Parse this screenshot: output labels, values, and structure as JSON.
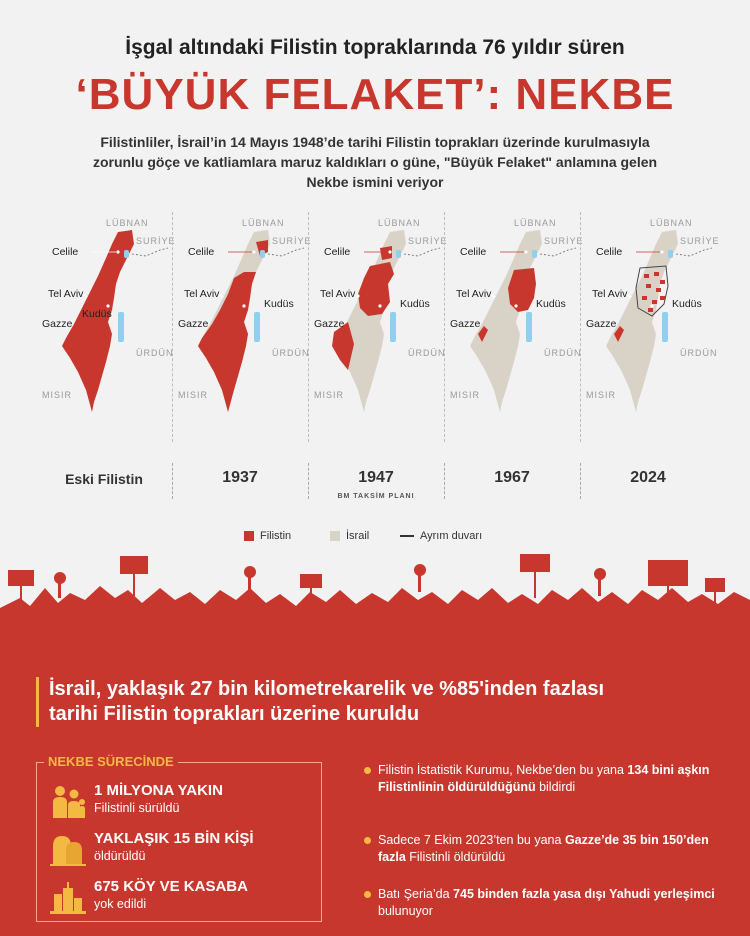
{
  "header": {
    "subtitle": "İşgal altındaki Filistin topraklarında 76 yıldır süren",
    "title": "‘BÜYÜK FELAKET’: NEKBE",
    "description": "Filistinliler, İsrail’in 14 Mayıs 1948’de tarihi Filistin toprakları üzerinde kurulmasıyla zorunlu göçe ve katliamlara maruz kaldıkları o güne, \"Büyük Felaket\" anlamına gelen Nekbe ismini veriyor"
  },
  "map_labels": {
    "lebanon": "LÜBNAN",
    "syria": "SURİYE",
    "jordan": "ÜRDÜN",
    "egypt": "MISIR",
    "celile": "Celile",
    "telaviv": "Tel Aviv",
    "gazze": "Gazze",
    "kudus": "Kudüs"
  },
  "periods": [
    {
      "label": "Eski Filistin",
      "sub": ""
    },
    {
      "label": "1937",
      "sub": ""
    },
    {
      "label": "1947",
      "sub": "BM TAKSİM PLANI"
    },
    {
      "label": "1967",
      "sub": ""
    },
    {
      "label": "2024",
      "sub": ""
    }
  ],
  "legend": {
    "palestine": "Filistin",
    "israel": "İsrail",
    "wall": "Ayrım duvarı"
  },
  "colors": {
    "palestine": "#c8372d",
    "israel": "#d9d2c7",
    "water": "#8fd0ef",
    "accent": "#f4b942"
  },
  "headline": {
    "line1": "İsrail, yaklaşık 27 bin kilometrekarelik ve %85'inden fazlası",
    "line2": "tarihi Filistin toprakları üzerine kuruldu"
  },
  "nekbe": {
    "title": "NEKBE SÜRECİNDE",
    "stats": [
      {
        "big": "1 MİLYONA YAKIN",
        "small": "Filistinli sürüldü",
        "icon": "refugees-icon"
      },
      {
        "big": "YAKLAŞIK 15 BİN KİŞİ",
        "small": "öldürüldü",
        "icon": "graves-icon"
      },
      {
        "big": "675 KÖY VE KASABA",
        "small": "yok edildi",
        "icon": "ruins-icon"
      }
    ]
  },
  "facts": [
    {
      "pre": "Filistin İstatistik Kurumu, Nekbe’den bu yana ",
      "bold": "134 bini aşkın Filistinlinin öldürüldüğünü",
      "post": " bildirdi"
    },
    {
      "pre": "Sadece 7 Ekim 2023’ten bu yana ",
      "bold": "Gazze’de 35 bin 150’den fazla",
      "post": " Filistinli öldürüldü"
    },
    {
      "pre": "Batı Şeria’da ",
      "bold": "745 binden fazla yasa dışı Yahudi yerleşimci",
      "post": " bulunuyor"
    }
  ]
}
